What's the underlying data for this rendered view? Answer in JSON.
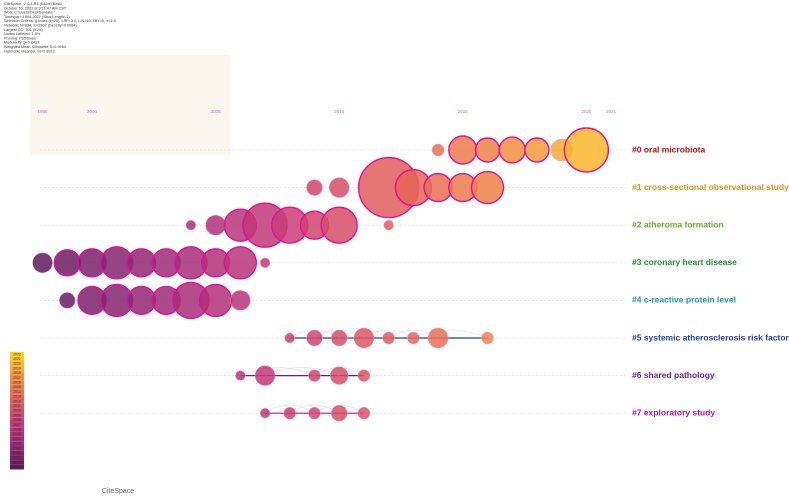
{
  "metadata": [
    "CiteSpace, v. 6.1.R3 (64-bit) Basic",
    "October 10, 2022 at 9:11:47 AM CST",
    "WoS: C:\\Users\\Desktop\\data",
    "Timespan: 1994-2022 (Slice Length=1)",
    "Selection Criteria: g-index (k=25), LRF=3.0, L/N=10, LBY=5, e=1.0",
    "Network: N=834, E=2907 (Density=0.0084)",
    "Largest CC: 766 (91%)",
    "Nodes Labeled: 1.0%",
    "Pruning: Pathfinder",
    "Modularity Q=0.8417",
    "Weighted Mean Silhouette S=0.9464",
    "Harmonic Mean(Q, S)=0.8912"
  ],
  "logo": "CiteSpace",
  "chart_data": {
    "type": "timeline",
    "xlim": [
      1996.2,
      2021.4
    ],
    "xticks": [
      1998,
      2000,
      2005,
      2010,
      2015,
      2020,
      2021
    ],
    "color_scale": [
      "#5e1a5c",
      "#9a2a78",
      "#c83a78",
      "#e4605a",
      "#f29040",
      "#ffd21a"
    ],
    "legend_years": [
      2022,
      2021,
      2020,
      2019,
      2018,
      2017,
      2016,
      2015,
      2014,
      2013,
      2012,
      2011,
      2010,
      2009,
      2008,
      2007,
      2006,
      2005,
      2004,
      2003,
      2002,
      2001,
      2000,
      1999,
      1998
    ],
    "clusters": [
      {
        "label": "#0 oral microbiota",
        "color": "#b00d0d",
        "years": [
          2014,
          2015,
          2016,
          2017,
          2018,
          2019,
          2020
        ],
        "citations": [
          9,
          49,
          36,
          42,
          36,
          30,
          121
        ]
      },
      {
        "label": "#1 cross-sectional observational study",
        "color": "#e0901a",
        "years": [
          2009,
          2010,
          2012,
          2013,
          2014,
          2015,
          2016
        ],
        "citations": [
          16,
          25,
          225,
          81,
          49,
          49,
          64
        ]
      },
      {
        "label": "#2 atheroma formation",
        "color": "#6aa82a",
        "years": [
          2004,
          2005,
          2006,
          2007,
          2008,
          2009,
          2010,
          2012
        ],
        "citations": [
          6,
          25,
          64,
          121,
          81,
          49,
          81,
          6
        ]
      },
      {
        "label": "#3 coronary heart disease",
        "color": "#1f8f2a",
        "years": [
          1998,
          1999,
          2000,
          2001,
          2002,
          2003,
          2004,
          2005,
          2006,
          2007
        ],
        "citations": [
          25,
          42,
          49,
          64,
          49,
          49,
          64,
          49,
          64,
          6
        ]
      },
      {
        "label": "#4 c-reactive protein level",
        "color": "#1a9a9a",
        "years": [
          1999,
          2000,
          2001,
          2002,
          2003,
          2004,
          2005,
          2006
        ],
        "citations": [
          16,
          49,
          64,
          49,
          49,
          81,
          64,
          25
        ]
      },
      {
        "label": "#5 systemic atherosclerosis risk factor",
        "color": "#1f3fa0",
        "years": [
          2008,
          2009,
          2010,
          2011,
          2012,
          2013,
          2014,
          2016
        ],
        "citations": [
          6,
          16,
          16,
          25,
          9,
          9,
          25,
          9
        ]
      },
      {
        "label": "#6 shared pathology",
        "color": "#5a1f9a",
        "years": [
          2006,
          2007,
          2009,
          2010,
          2011
        ],
        "citations": [
          6,
          25,
          9,
          20,
          9
        ]
      },
      {
        "label": "#7 exploratory study",
        "color": "#b0189a",
        "years": [
          2007,
          2008,
          2009,
          2010,
          2011
        ],
        "citations": [
          6,
          9,
          9,
          16,
          9
        ]
      }
    ]
  }
}
